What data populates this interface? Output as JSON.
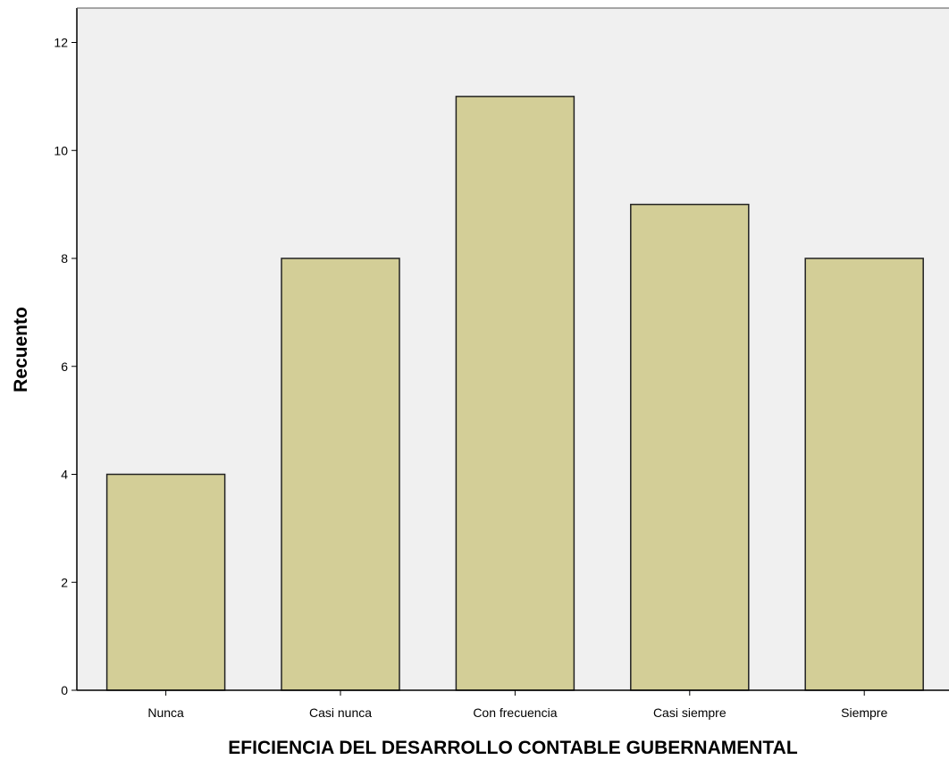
{
  "chart_data": {
    "type": "bar",
    "title": "",
    "xlabel": "EFICIENCIA DEL DESARROLLO CONTABLE GUBERNAMENTAL",
    "ylabel": "Recuento",
    "categories": [
      "Nunca",
      "Casi nunca",
      "Con frecuencia",
      "Casi siempre",
      "Siempre"
    ],
    "values": [
      4,
      8,
      11,
      9,
      8
    ],
    "ylim": [
      0,
      12.6
    ],
    "yticks": [
      0,
      2,
      4,
      6,
      8,
      10,
      12
    ],
    "grid": false,
    "colors": {
      "plot_background": "#f0f0f0",
      "bar_fill": "#d3ce97",
      "bar_stroke": "#222222",
      "axis": "#000000"
    }
  }
}
